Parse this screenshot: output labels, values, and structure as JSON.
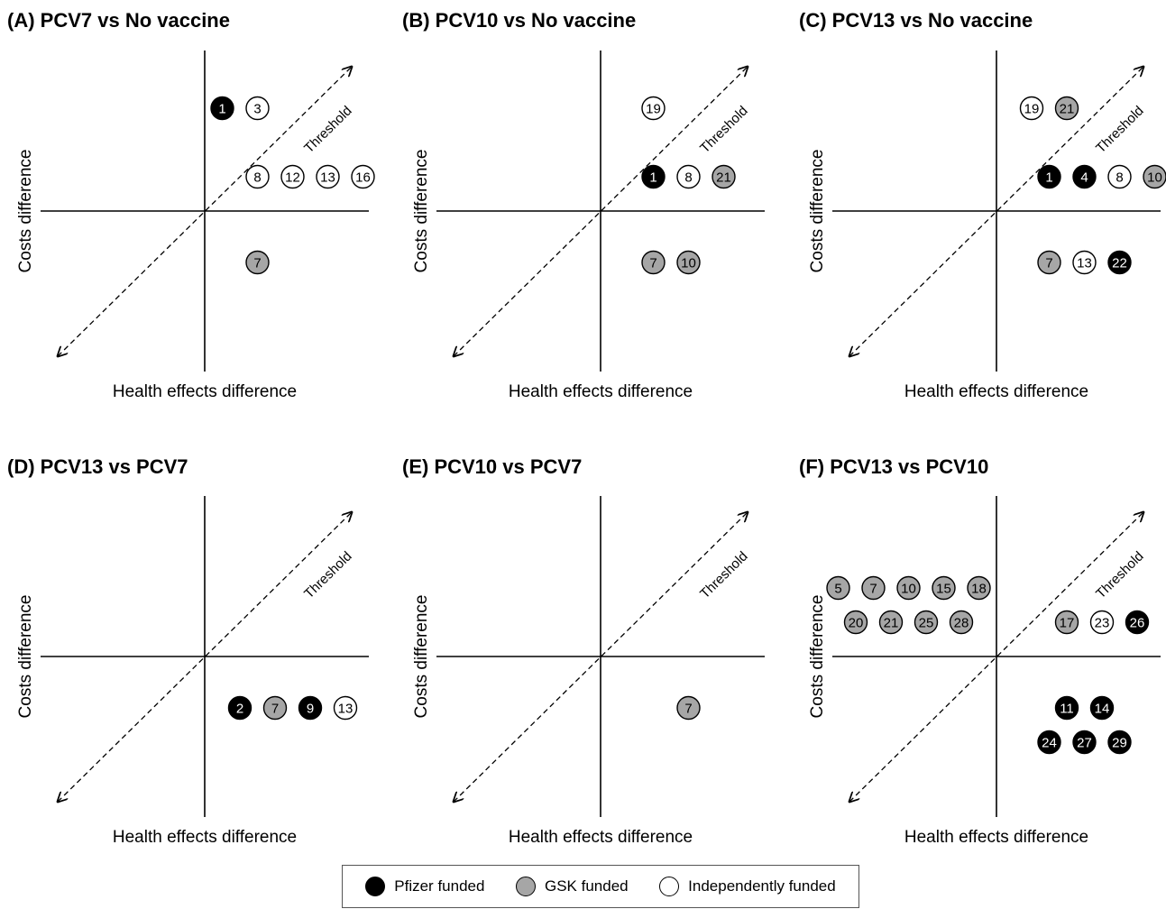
{
  "colors": {
    "pfizer": "#000000",
    "gsk": "#a6a6a6",
    "independent": "#ffffff"
  },
  "legend": {
    "position": "bottom-center",
    "items": [
      {
        "key": "pfizer",
        "label": "Pfizer funded",
        "color": "#000000"
      },
      {
        "key": "gsk",
        "label": "GSK funded",
        "color": "#a6a6a6"
      },
      {
        "key": "independent",
        "label": "Independently funded",
        "color": "#ffffff"
      }
    ]
  },
  "chart_data": [
    {
      "type": "scatter",
      "title": "(A) PCV7 vs No vaccine",
      "xlabel": "Health effects difference",
      "ylabel": "Costs difference",
      "threshold_label": "Threshold",
      "points": [
        {
          "id": "1",
          "funder": "pfizer",
          "x": 0.5,
          "y": 3
        },
        {
          "id": "3",
          "funder": "independent",
          "x": 1.5,
          "y": 3
        },
        {
          "id": "8",
          "funder": "independent",
          "x": 1.5,
          "y": 1
        },
        {
          "id": "12",
          "funder": "independent",
          "x": 2.5,
          "y": 1
        },
        {
          "id": "13",
          "funder": "independent",
          "x": 3.5,
          "y": 1
        },
        {
          "id": "16",
          "funder": "independent",
          "x": 4.5,
          "y": 1
        },
        {
          "id": "7",
          "funder": "gsk",
          "x": 1.5,
          "y": -1.5
        }
      ]
    },
    {
      "type": "scatter",
      "title": "(B) PCV10 vs No vaccine",
      "xlabel": "Health effects difference",
      "ylabel": "Costs difference",
      "threshold_label": "Threshold",
      "points": [
        {
          "id": "19",
          "funder": "independent",
          "x": 1.5,
          "y": 3
        },
        {
          "id": "1",
          "funder": "pfizer",
          "x": 1.5,
          "y": 1
        },
        {
          "id": "8",
          "funder": "independent",
          "x": 2.5,
          "y": 1
        },
        {
          "id": "21",
          "funder": "gsk",
          "x": 3.5,
          "y": 1
        },
        {
          "id": "7",
          "funder": "gsk",
          "x": 1.5,
          "y": -1.5
        },
        {
          "id": "10",
          "funder": "gsk",
          "x": 2.5,
          "y": -1.5
        }
      ]
    },
    {
      "type": "scatter",
      "title": "(C) PCV13 vs No vaccine",
      "xlabel": "Health effects difference",
      "ylabel": "Costs difference",
      "threshold_label": "Threshold",
      "points": [
        {
          "id": "19",
          "funder": "independent",
          "x": 1.0,
          "y": 3
        },
        {
          "id": "21",
          "funder": "gsk",
          "x": 2.0,
          "y": 3
        },
        {
          "id": "1",
          "funder": "pfizer",
          "x": 1.5,
          "y": 1
        },
        {
          "id": "4",
          "funder": "pfizer",
          "x": 2.5,
          "y": 1
        },
        {
          "id": "8",
          "funder": "independent",
          "x": 3.5,
          "y": 1
        },
        {
          "id": "10",
          "funder": "gsk",
          "x": 4.5,
          "y": 1
        },
        {
          "id": "7",
          "funder": "gsk",
          "x": 1.5,
          "y": -1.5
        },
        {
          "id": "13",
          "funder": "independent",
          "x": 2.5,
          "y": -1.5
        },
        {
          "id": "22",
          "funder": "pfizer",
          "x": 3.5,
          "y": -1.5
        }
      ]
    },
    {
      "type": "scatter",
      "title": "(D) PCV13 vs PCV7",
      "xlabel": "Health effects difference",
      "ylabel": "Costs difference",
      "threshold_label": "Threshold",
      "points": [
        {
          "id": "2",
          "funder": "pfizer",
          "x": 1.0,
          "y": -1.5
        },
        {
          "id": "7",
          "funder": "gsk",
          "x": 2.0,
          "y": -1.5
        },
        {
          "id": "9",
          "funder": "pfizer",
          "x": 3.0,
          "y": -1.5
        },
        {
          "id": "13",
          "funder": "independent",
          "x": 4.0,
          "y": -1.5
        }
      ]
    },
    {
      "type": "scatter",
      "title": "(E) PCV10 vs PCV7",
      "xlabel": "Health effects difference",
      "ylabel": "Costs difference",
      "threshold_label": "Threshold",
      "points": [
        {
          "id": "7",
          "funder": "gsk",
          "x": 2.5,
          "y": -1.5
        }
      ]
    },
    {
      "type": "scatter",
      "title": "(F) PCV13 vs PCV10",
      "xlabel": "Health effects difference",
      "ylabel": "Costs difference",
      "threshold_label": "Threshold",
      "points": [
        {
          "id": "5",
          "funder": "gsk",
          "x": -4.5,
          "y": 2
        },
        {
          "id": "7",
          "funder": "gsk",
          "x": -3.5,
          "y": 2
        },
        {
          "id": "10",
          "funder": "gsk",
          "x": -2.5,
          "y": 2
        },
        {
          "id": "15",
          "funder": "gsk",
          "x": -1.5,
          "y": 2
        },
        {
          "id": "18",
          "funder": "gsk",
          "x": -0.5,
          "y": 2
        },
        {
          "id": "20",
          "funder": "gsk",
          "x": -4.0,
          "y": 1
        },
        {
          "id": "21",
          "funder": "gsk",
          "x": -3.0,
          "y": 1
        },
        {
          "id": "25",
          "funder": "gsk",
          "x": -2.0,
          "y": 1
        },
        {
          "id": "28",
          "funder": "gsk",
          "x": -1.0,
          "y": 1
        },
        {
          "id": "17",
          "funder": "gsk",
          "x": 2.0,
          "y": 1
        },
        {
          "id": "23",
          "funder": "independent",
          "x": 3.0,
          "y": 1
        },
        {
          "id": "26",
          "funder": "pfizer",
          "x": 4.0,
          "y": 1
        },
        {
          "id": "11",
          "funder": "pfizer",
          "x": 2.0,
          "y": -1.5
        },
        {
          "id": "14",
          "funder": "pfizer",
          "x": 3.0,
          "y": -1.5
        },
        {
          "id": "24",
          "funder": "pfizer",
          "x": 1.5,
          "y": -2.5
        },
        {
          "id": "27",
          "funder": "pfizer",
          "x": 2.5,
          "y": -2.5
        },
        {
          "id": "29",
          "funder": "pfizer",
          "x": 3.5,
          "y": -2.5
        }
      ]
    }
  ]
}
